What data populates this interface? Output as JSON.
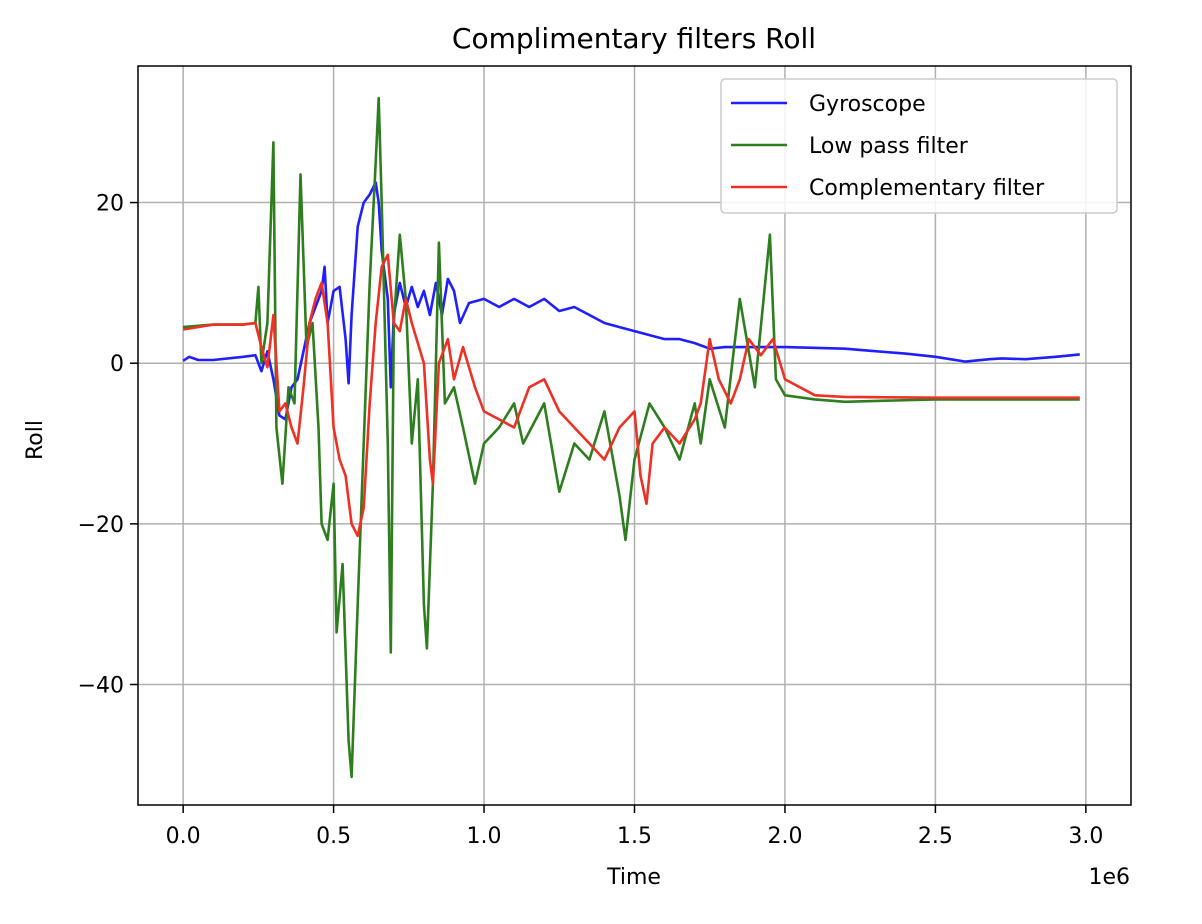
{
  "chart_data": {
    "type": "line",
    "title": "Complimentary filters Roll",
    "xlabel": "Time",
    "ylabel": "Roll",
    "x_offset_label": "1e6",
    "xlim": [
      -0.15,
      3.15
    ],
    "ylim": [
      -55,
      37
    ],
    "x_ticks": [
      0.0,
      0.5,
      1.0,
      1.5,
      2.0,
      2.5,
      3.0
    ],
    "x_tick_labels": [
      "0.0",
      "0.5",
      "1.0",
      "1.5",
      "2.0",
      "2.5",
      "3.0"
    ],
    "y_ticks": [
      -40,
      -20,
      0,
      20
    ],
    "y_tick_labels": [
      "−40",
      "−20",
      "0",
      "20"
    ],
    "grid": true,
    "legend_position": "top-right",
    "series": [
      {
        "name": "Gyroscope",
        "color": "#1f1fff",
        "points": [
          [
            0,
            0.3
          ],
          [
            0.02,
            0.8
          ],
          [
            0.05,
            0.4
          ],
          [
            0.1,
            0.4
          ],
          [
            0.2,
            0.8
          ],
          [
            0.24,
            1.0
          ],
          [
            0.26,
            -1.0
          ],
          [
            0.28,
            1.5
          ],
          [
            0.3,
            -2.0
          ],
          [
            0.32,
            -6.5
          ],
          [
            0.34,
            -7.0
          ],
          [
            0.36,
            -3.0
          ],
          [
            0.38,
            -2.0
          ],
          [
            0.4,
            1.5
          ],
          [
            0.42,
            5.0
          ],
          [
            0.44,
            7.0
          ],
          [
            0.46,
            9.0
          ],
          [
            0.47,
            12.0
          ],
          [
            0.48,
            5.0
          ],
          [
            0.5,
            9.0
          ],
          [
            0.52,
            9.5
          ],
          [
            0.54,
            3.0
          ],
          [
            0.55,
            -2.5
          ],
          [
            0.56,
            6.0
          ],
          [
            0.58,
            17.0
          ],
          [
            0.6,
            20.0
          ],
          [
            0.62,
            21.0
          ],
          [
            0.64,
            22.5
          ],
          [
            0.65,
            20.0
          ],
          [
            0.66,
            14.0
          ],
          [
            0.68,
            8.0
          ],
          [
            0.69,
            -3.0
          ],
          [
            0.7,
            6.0
          ],
          [
            0.72,
            10.0
          ],
          [
            0.74,
            7.0
          ],
          [
            0.76,
            9.5
          ],
          [
            0.78,
            7.0
          ],
          [
            0.8,
            9.0
          ],
          [
            0.82,
            6.0
          ],
          [
            0.84,
            10.0
          ],
          [
            0.86,
            6.0
          ],
          [
            0.88,
            10.5
          ],
          [
            0.9,
            9.0
          ],
          [
            0.92,
            5.0
          ],
          [
            0.95,
            7.5
          ],
          [
            1.0,
            8.0
          ],
          [
            1.05,
            7.0
          ],
          [
            1.1,
            8.0
          ],
          [
            1.15,
            7.0
          ],
          [
            1.2,
            8.0
          ],
          [
            1.25,
            6.5
          ],
          [
            1.3,
            7.0
          ],
          [
            1.35,
            6.0
          ],
          [
            1.4,
            5.0
          ],
          [
            1.45,
            4.5
          ],
          [
            1.5,
            4.0
          ],
          [
            1.55,
            3.5
          ],
          [
            1.6,
            3.0
          ],
          [
            1.65,
            3.0
          ],
          [
            1.7,
            2.5
          ],
          [
            1.75,
            1.8
          ],
          [
            1.8,
            2.0
          ],
          [
            1.85,
            2.0
          ],
          [
            1.9,
            2.0
          ],
          [
            2.0,
            2.0
          ],
          [
            2.2,
            1.8
          ],
          [
            2.3,
            1.5
          ],
          [
            2.4,
            1.2
          ],
          [
            2.5,
            0.8
          ],
          [
            2.6,
            0.2
          ],
          [
            2.68,
            0.5
          ],
          [
            2.72,
            0.6
          ],
          [
            2.8,
            0.5
          ],
          [
            2.9,
            0.8
          ],
          [
            2.98,
            1.1
          ]
        ]
      },
      {
        "name": "Low pass filter",
        "color": "#2e7d1f",
        "points": [
          [
            0,
            4.5
          ],
          [
            0.1,
            4.8
          ],
          [
            0.2,
            4.8
          ],
          [
            0.24,
            5.0
          ],
          [
            0.25,
            9.5
          ],
          [
            0.26,
            0.0
          ],
          [
            0.28,
            5.0
          ],
          [
            0.3,
            27.5
          ],
          [
            0.31,
            -8.0
          ],
          [
            0.33,
            -15.0
          ],
          [
            0.35,
            -3.0
          ],
          [
            0.37,
            -5.0
          ],
          [
            0.39,
            23.5
          ],
          [
            0.41,
            2.0
          ],
          [
            0.43,
            5.0
          ],
          [
            0.45,
            -8.0
          ],
          [
            0.46,
            -20.0
          ],
          [
            0.48,
            -22.0
          ],
          [
            0.5,
            -15.0
          ],
          [
            0.51,
            -33.5
          ],
          [
            0.53,
            -25.0
          ],
          [
            0.55,
            -47.0
          ],
          [
            0.56,
            -51.5
          ],
          [
            0.58,
            -30.0
          ],
          [
            0.6,
            -10.0
          ],
          [
            0.62,
            10.0
          ],
          [
            0.64,
            25.0
          ],
          [
            0.65,
            33.0
          ],
          [
            0.66,
            20.0
          ],
          [
            0.68,
            -10.0
          ],
          [
            0.69,
            -36.0
          ],
          [
            0.7,
            5.0
          ],
          [
            0.72,
            16.0
          ],
          [
            0.74,
            8.0
          ],
          [
            0.76,
            -10.0
          ],
          [
            0.78,
            -2.0
          ],
          [
            0.8,
            -30.0
          ],
          [
            0.81,
            -35.5
          ],
          [
            0.83,
            -15.0
          ],
          [
            0.85,
            15.0
          ],
          [
            0.87,
            -5.0
          ],
          [
            0.9,
            -3.0
          ],
          [
            0.93,
            -8.0
          ],
          [
            0.97,
            -15.0
          ],
          [
            1.0,
            -10.0
          ],
          [
            1.05,
            -8.0
          ],
          [
            1.1,
            -5.0
          ],
          [
            1.13,
            -10.0
          ],
          [
            1.2,
            -5.0
          ],
          [
            1.25,
            -16.0
          ],
          [
            1.3,
            -10.0
          ],
          [
            1.35,
            -12.0
          ],
          [
            1.4,
            -6.0
          ],
          [
            1.45,
            -16.5
          ],
          [
            1.47,
            -22.0
          ],
          [
            1.5,
            -12.0
          ],
          [
            1.55,
            -5.0
          ],
          [
            1.6,
            -8.0
          ],
          [
            1.65,
            -12.0
          ],
          [
            1.7,
            -5.0
          ],
          [
            1.72,
            -10.0
          ],
          [
            1.75,
            -2.0
          ],
          [
            1.8,
            -8.0
          ],
          [
            1.85,
            8.0
          ],
          [
            1.9,
            -3.0
          ],
          [
            1.95,
            16.0
          ],
          [
            1.97,
            -2.0
          ],
          [
            2.0,
            -4.0
          ],
          [
            2.1,
            -4.5
          ],
          [
            2.2,
            -4.8
          ],
          [
            2.5,
            -4.5
          ],
          [
            2.8,
            -4.5
          ],
          [
            2.98,
            -4.5
          ]
        ]
      },
      {
        "name": "Complementary filter",
        "color": "#ee3124",
        "points": [
          [
            0,
            4.2
          ],
          [
            0.1,
            4.8
          ],
          [
            0.2,
            4.8
          ],
          [
            0.24,
            5.0
          ],
          [
            0.26,
            2.0
          ],
          [
            0.28,
            -0.5
          ],
          [
            0.3,
            6.0
          ],
          [
            0.32,
            -6.0
          ],
          [
            0.34,
            -5.0
          ],
          [
            0.36,
            -8.0
          ],
          [
            0.38,
            -10.0
          ],
          [
            0.4,
            -3.0
          ],
          [
            0.42,
            5.0
          ],
          [
            0.44,
            8.0
          ],
          [
            0.46,
            10.0
          ],
          [
            0.48,
            5.0
          ],
          [
            0.5,
            -8.0
          ],
          [
            0.52,
            -12.0
          ],
          [
            0.54,
            -14.0
          ],
          [
            0.56,
            -20.0
          ],
          [
            0.58,
            -21.5
          ],
          [
            0.6,
            -18.0
          ],
          [
            0.62,
            -5.0
          ],
          [
            0.64,
            5.0
          ],
          [
            0.66,
            12.0
          ],
          [
            0.68,
            13.5
          ],
          [
            0.7,
            5.0
          ],
          [
            0.72,
            4.0
          ],
          [
            0.74,
            8.0
          ],
          [
            0.76,
            5.0
          ],
          [
            0.8,
            0.0
          ],
          [
            0.82,
            -12.0
          ],
          [
            0.83,
            -15.0
          ],
          [
            0.85,
            0.0
          ],
          [
            0.88,
            3.0
          ],
          [
            0.9,
            -2.0
          ],
          [
            0.93,
            2.0
          ],
          [
            0.97,
            -3.0
          ],
          [
            1.0,
            -6.0
          ],
          [
            1.05,
            -7.0
          ],
          [
            1.1,
            -8.0
          ],
          [
            1.15,
            -3.0
          ],
          [
            1.2,
            -2.0
          ],
          [
            1.25,
            -6.0
          ],
          [
            1.3,
            -8.0
          ],
          [
            1.35,
            -10.0
          ],
          [
            1.4,
            -12.0
          ],
          [
            1.45,
            -8.0
          ],
          [
            1.5,
            -6.0
          ],
          [
            1.52,
            -14.0
          ],
          [
            1.54,
            -17.5
          ],
          [
            1.56,
            -10.0
          ],
          [
            1.6,
            -8.0
          ],
          [
            1.65,
            -10.0
          ],
          [
            1.7,
            -7.0
          ],
          [
            1.72,
            -5.0
          ],
          [
            1.75,
            3.0
          ],
          [
            1.78,
            -2.0
          ],
          [
            1.82,
            -5.0
          ],
          [
            1.85,
            -2.0
          ],
          [
            1.88,
            3.0
          ],
          [
            1.92,
            1.0
          ],
          [
            1.96,
            3.0
          ],
          [
            2.0,
            -2.0
          ],
          [
            2.05,
            -3.0
          ],
          [
            2.1,
            -4.0
          ],
          [
            2.2,
            -4.2
          ],
          [
            2.5,
            -4.3
          ],
          [
            2.8,
            -4.3
          ],
          [
            2.98,
            -4.3
          ]
        ]
      }
    ]
  }
}
